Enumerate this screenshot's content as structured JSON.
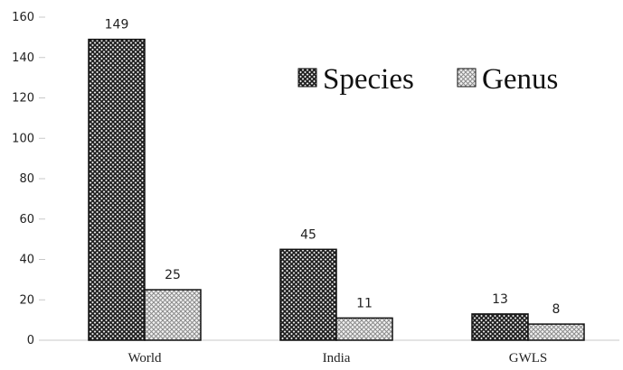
{
  "chart_data": {
    "type": "bar",
    "categories": [
      "World",
      "India",
      "GWLS"
    ],
    "series": [
      {
        "name": "Species",
        "values": [
          149,
          45,
          13
        ],
        "color": "#2b2b2b",
        "pattern": "dense-crosshatch"
      },
      {
        "name": "Genus",
        "values": [
          25,
          11,
          8
        ],
        "color": "#9a9a9a",
        "pattern": "light-crosshatch"
      }
    ],
    "ylim": [
      0,
      160
    ],
    "yticks": [
      0,
      20,
      40,
      60,
      80,
      100,
      120,
      140,
      160
    ],
    "grid": false,
    "legend": {
      "placement": "top-right",
      "entries": [
        "Species",
        "Genus"
      ]
    },
    "title": "",
    "xlabel": "",
    "ylabel": "",
    "data_labels": true
  }
}
